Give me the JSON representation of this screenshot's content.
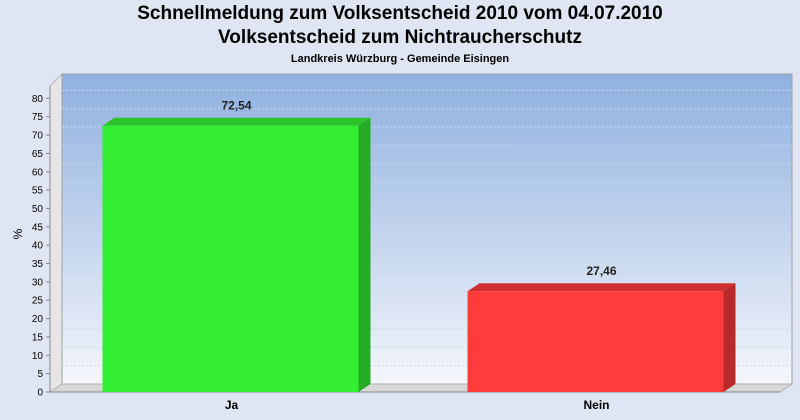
{
  "chart_data": {
    "type": "bar",
    "title": "Schnellmeldung zum Volksentscheid 2010 vom 04.07.2010",
    "subtitle": "Volksentscheid zum Nichtraucherschutz",
    "caption": "Landkreis Würzburg - Gemeinde Eisingen",
    "categories": [
      "Ja",
      "Nein"
    ],
    "values": [
      72.54,
      27.46
    ],
    "data_labels": [
      "72,54",
      "27,46"
    ],
    "bar_colors": [
      "#33ee33",
      "#ff3b3b"
    ],
    "ylabel": "%",
    "xlabel": "",
    "ylim": [
      0,
      85
    ],
    "yticks": [
      0,
      5,
      10,
      15,
      20,
      25,
      30,
      35,
      40,
      45,
      50,
      55,
      60,
      65,
      70,
      75,
      80
    ],
    "grid": true,
    "legend": "none"
  },
  "colors": {
    "page_background": "#dfe5f2",
    "plot_top": "#8fb0df",
    "plot_bottom": "#f4f6fb"
  }
}
